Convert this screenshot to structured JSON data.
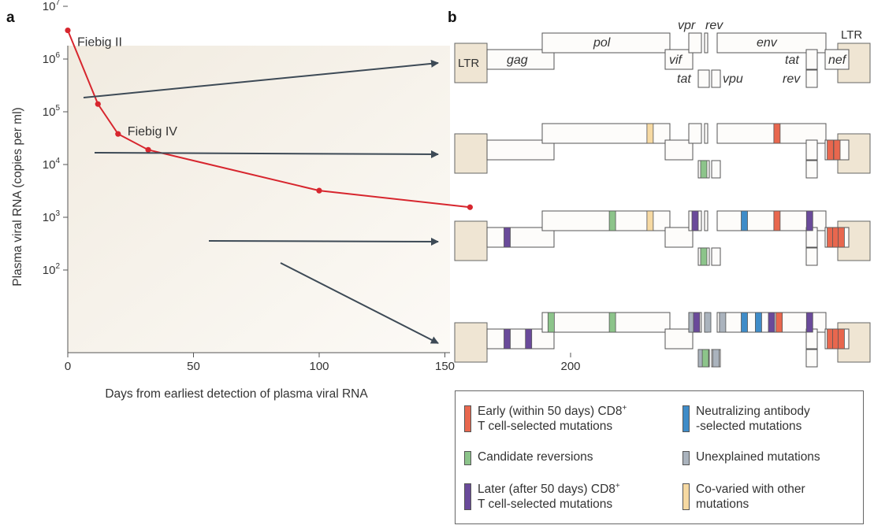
{
  "panel_a_letter": "a",
  "panel_b_letter": "b",
  "chart_data": {
    "type": "line",
    "title": "",
    "xlabel": "Days from earliest detection of plasma viral RNA",
    "ylabel": "Plasma viral RNA (copies per ml)",
    "x_ticks": [
      0,
      50,
      100,
      150,
      200
    ],
    "y_ticks": [
      {
        "value": 100,
        "base": "10",
        "exp": "2"
      },
      {
        "value": 1000,
        "base": "10",
        "exp": "3"
      },
      {
        "value": 10000,
        "base": "10",
        "exp": "4"
      },
      {
        "value": 100000,
        "base": "10",
        "exp": "5"
      },
      {
        "value": 1000000,
        "base": "10",
        "exp": "6"
      },
      {
        "value": 10000000,
        "base": "10",
        "exp": "7"
      }
    ],
    "xlim": [
      -5,
      255
    ],
    "ylim": [
      40,
      15000000
    ],
    "y_scale": "log",
    "grid": false,
    "series": [
      {
        "color": "#d7262e",
        "points": [
          [
            0,
            3500000
          ],
          [
            12,
            140000
          ],
          [
            20,
            38000
          ],
          [
            32,
            19000
          ],
          [
            100,
            3200
          ],
          [
            160,
            1550
          ]
        ]
      }
    ],
    "annotations": [
      {
        "text": "Fiebig II",
        "x": 0,
        "y": 3500000
      },
      {
        "text": "Fiebig IV",
        "x": 20,
        "y": 38000
      }
    ]
  },
  "genome": {
    "ltr_label": "LTR",
    "genes": {
      "gag": "gag",
      "pol": "pol",
      "vif": "vif",
      "vpr": "vpr",
      "rev": "rev",
      "env": "env",
      "tat": "tat",
      "vpu": "vpu",
      "nef": "nef"
    }
  },
  "colors": {
    "early_ctl": "#e8674e",
    "reversion": "#8cc48a",
    "later_ctl": "#6a4a9a",
    "nab": "#3f8cc8",
    "unexplained": "#aab3bd",
    "covaried": "#f6d9a2",
    "curve": "#d7262e",
    "arrow": "#3d4a56",
    "ltr_fill": "#efe5d3"
  },
  "mutations": [
    [],
    [
      {
        "gene": "pol",
        "type": "covaried",
        "pos": 0.845
      },
      {
        "gene": "env",
        "type": "early_ctl",
        "pos": 0.55
      },
      {
        "gene": "tat1",
        "type": "reversion",
        "pos": 0.5
      },
      {
        "gene": "nef",
        "type": "early_ctl",
        "pos": 0.22
      },
      {
        "gene": "nef",
        "type": "early_ctl",
        "pos": 0.5
      }
    ],
    [
      {
        "gene": "gag",
        "type": "later_ctl",
        "pos": 0.3
      },
      {
        "gene": "pol",
        "type": "reversion",
        "pos": 0.55
      },
      {
        "gene": "pol",
        "type": "covaried",
        "pos": 0.845
      },
      {
        "gene": "vpr",
        "type": "later_ctl",
        "pos": 0.5
      },
      {
        "gene": "env",
        "type": "nab",
        "pos": 0.25
      },
      {
        "gene": "env",
        "type": "early_ctl",
        "pos": 0.55
      },
      {
        "gene": "env",
        "type": "later_ctl",
        "pos": 0.85
      },
      {
        "gene": "tat1",
        "type": "reversion",
        "pos": 0.5
      },
      {
        "gene": "nef",
        "type": "early_ctl",
        "pos": 0.22
      },
      {
        "gene": "nef",
        "type": "early_ctl",
        "pos": 0.45
      },
      {
        "gene": "nef",
        "type": "early_ctl",
        "pos": 0.68
      }
    ],
    [
      {
        "gene": "gag",
        "type": "later_ctl",
        "pos": 0.3
      },
      {
        "gene": "gag",
        "type": "later_ctl",
        "pos": 0.62
      },
      {
        "gene": "pol",
        "type": "reversion",
        "pos": 0.07
      },
      {
        "gene": "pol",
        "type": "reversion",
        "pos": 0.55
      },
      {
        "gene": "vpr",
        "type": "unexplained",
        "pos": 0.2
      },
      {
        "gene": "vpr",
        "type": "later_ctl",
        "pos": 0.62
      },
      {
        "gene": "rev",
        "type": "unexplained",
        "pos": 0.5
      },
      {
        "gene": "env",
        "type": "unexplained",
        "pos": 0.05
      },
      {
        "gene": "env",
        "type": "nab",
        "pos": 0.25
      },
      {
        "gene": "env",
        "type": "nab",
        "pos": 0.38
      },
      {
        "gene": "env",
        "type": "later_ctl",
        "pos": 0.5
      },
      {
        "gene": "env",
        "type": "early_ctl",
        "pos": 0.57
      },
      {
        "gene": "env",
        "type": "later_ctl",
        "pos": 0.85
      },
      {
        "gene": "tat1",
        "type": "unexplained",
        "pos": 0.25
      },
      {
        "gene": "tat1",
        "type": "reversion",
        "pos": 0.65
      },
      {
        "gene": "vpu",
        "type": "unexplained",
        "pos": 0.5
      },
      {
        "gene": "nef",
        "type": "early_ctl",
        "pos": 0.22
      },
      {
        "gene": "nef",
        "type": "early_ctl",
        "pos": 0.45
      },
      {
        "gene": "nef",
        "type": "early_ctl",
        "pos": 0.68
      }
    ]
  ],
  "legend": [
    {
      "type": "early_ctl",
      "text": "Early (within 50 days) CD8",
      "sup": "+",
      "text2": "\nT cell-selected mutations"
    },
    {
      "type": "nab",
      "text": "Neutralizing antibody\n-selected mutations",
      "sup": "",
      "text2": ""
    },
    {
      "type": "reversion",
      "text": "Candidate reversions",
      "sup": "",
      "text2": ""
    },
    {
      "type": "unexplained",
      "text": "Unexplained mutations",
      "sup": "",
      "text2": ""
    },
    {
      "type": "later_ctl",
      "text": "Later (after 50 days) CD8",
      "sup": "+",
      "text2": "\nT cell-selected mutations"
    },
    {
      "type": "covaried",
      "text": "Co-varied with other\nmutations",
      "sup": "",
      "text2": ""
    }
  ]
}
